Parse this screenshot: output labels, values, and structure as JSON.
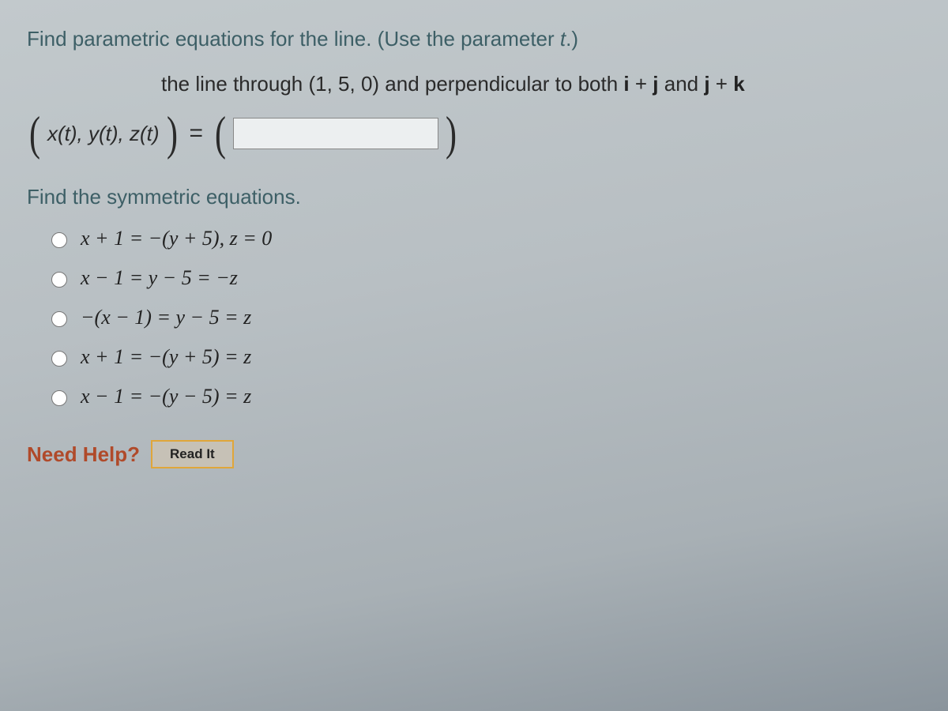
{
  "question": {
    "prompt_line": "Find parametric equations for the line. (Use the parameter ",
    "param_symbol": "t",
    "prompt_tail": ".)",
    "description_pre": "the line through (1, 5, 0) and perpendicular to both ",
    "vec1_a": "i",
    "vec_plus1": " + ",
    "vec1_b": "j",
    "vec_and": " and ",
    "vec2_a": "j",
    "vec_plus2": " + ",
    "vec2_b": "k",
    "funcs": "x(t), y(t), z(t)",
    "equals": "=",
    "answer_value": "",
    "sub_prompt": "Find the symmetric equations.",
    "options": [
      "x + 1 = −(y + 5), z = 0",
      "x − 1 = y − 5 = −z",
      "−(x − 1) = y − 5 = z",
      "x + 1 = −(y + 5) = z",
      "x − 1 = −(y − 5) = z"
    ]
  },
  "help": {
    "label": "Need Help?",
    "button": "Read It"
  },
  "style": {
    "prompt_color": "#3d5f66",
    "help_color": "#b04a2a",
    "button_bg": "#c6c1b6",
    "button_border": "#e0a63a",
    "body_text": "#222222",
    "input_bg": "#eceff0",
    "font_size_main": 26
  }
}
